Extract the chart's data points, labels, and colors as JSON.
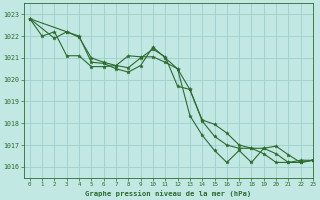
{
  "title": "Graphe pression niveau de la mer (hPa)",
  "background_color": "#c2e8e4",
  "grid_color": "#9ecece",
  "line_color": "#2d6b2d",
  "marker_color": "#2d6b2d",
  "xlim": [
    -0.5,
    23
  ],
  "ylim": [
    1015.5,
    1023.5
  ],
  "yticks": [
    1016,
    1017,
    1018,
    1019,
    1020,
    1021,
    1022,
    1023
  ],
  "xticks": [
    0,
    1,
    2,
    3,
    4,
    5,
    6,
    7,
    8,
    9,
    10,
    11,
    12,
    13,
    14,
    15,
    16,
    17,
    18,
    19,
    20,
    21,
    22,
    23
  ],
  "series1_x": [
    0,
    1,
    2,
    3,
    4,
    5,
    6,
    7,
    8,
    9,
    10,
    11,
    12,
    13,
    14,
    15,
    16,
    17,
    18,
    19,
    20,
    21,
    22,
    23
  ],
  "series1_y": [
    1022.8,
    1022.0,
    1022.2,
    1021.1,
    1021.1,
    1020.6,
    1020.6,
    1020.65,
    1021.1,
    1021.05,
    1021.05,
    1020.8,
    1020.5,
    1019.55,
    1018.1,
    1017.4,
    1017.0,
    1016.85,
    1016.85,
    1016.6,
    1016.2,
    1016.2,
    1016.3,
    1016.3
  ],
  "series2_x": [
    0,
    2,
    3,
    4,
    5,
    6,
    7,
    8,
    9,
    10,
    11,
    12,
    13,
    14,
    15,
    16,
    17,
    18,
    19,
    20,
    21,
    22,
    23
  ],
  "series2_y": [
    1022.8,
    1021.9,
    1022.2,
    1021.95,
    1021.0,
    1020.8,
    1020.65,
    1020.55,
    1021.0,
    1021.4,
    1021.05,
    1019.7,
    1019.55,
    1018.15,
    1017.95,
    1017.55,
    1017.0,
    1016.85,
    1016.85,
    1016.6,
    1016.2,
    1016.2,
    1016.3
  ],
  "series3_x": [
    0,
    3,
    4,
    5,
    6,
    7,
    8,
    9,
    10,
    11,
    12,
    13,
    14,
    15,
    16,
    17,
    18,
    19,
    20,
    21,
    22,
    23
  ],
  "series3_y": [
    1022.8,
    1022.2,
    1022.0,
    1020.8,
    1020.75,
    1020.5,
    1020.35,
    1020.65,
    1021.5,
    1021.0,
    1020.5,
    1018.35,
    1017.45,
    1016.75,
    1016.2,
    1016.75,
    1016.2,
    1016.85,
    1016.95,
    1016.55,
    1016.2,
    1016.3
  ]
}
